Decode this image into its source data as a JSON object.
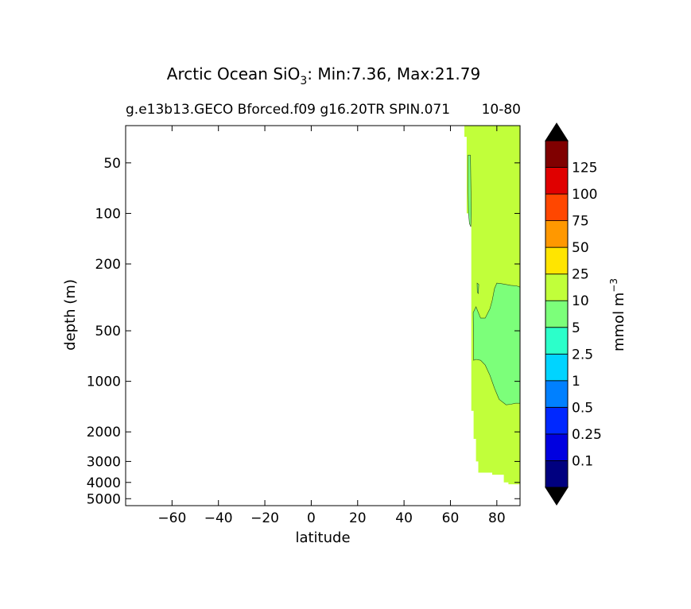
{
  "chart_data": {
    "type": "heatmap",
    "title": "Arctic Ocean SiO3: Min:7.36, Max:21.79",
    "title_parts": {
      "prefix": "Arctic Ocean SiO",
      "subscript": "3",
      "suffix": ": Min:7.36, Max:21.79"
    },
    "subtitle_left": "g.e13b13.GECO Bforced.f09 g16.20TR SPIN.071",
    "subtitle_right": "10-80",
    "xlabel": "latitude",
    "ylabel": "depth (m)",
    "x_range": [
      -80,
      90
    ],
    "x_ticks": [
      -60,
      -40,
      -20,
      0,
      20,
      40,
      60,
      80
    ],
    "x_tick_labels": [
      "−60",
      "−40",
      "−20",
      "0",
      "20",
      "40",
      "60",
      "80"
    ],
    "y_scale": "log",
    "y_inverted": true,
    "y_range": [
      5500,
      30
    ],
    "y_ticks": [
      50,
      100,
      200,
      500,
      1000,
      2000,
      3000,
      4000,
      5000
    ],
    "y_tick_labels": [
      "50",
      "100",
      "200",
      "500",
      "1000",
      "2000",
      "3000",
      "4000",
      "5000"
    ],
    "colorbar": {
      "label": "mmol m",
      "label_exponent": "−3",
      "extend": "both",
      "levels": [
        0,
        0.1,
        0.25,
        0.5,
        1,
        2.5,
        5,
        10,
        25,
        50,
        75,
        100,
        125,
        150
      ],
      "tick_labels": [
        "0.1",
        "0.25",
        "0.5",
        "1",
        "2.5",
        "5",
        "10",
        "25",
        "50",
        "75",
        "100",
        "125"
      ],
      "colors": [
        "#000080",
        "#0000e0",
        "#0028ff",
        "#0080ff",
        "#00d4ff",
        "#2cffca",
        "#7cff7a",
        "#c1ff3a",
        "#ffe500",
        "#ff9800",
        "#ff4700",
        "#e00000",
        "#800000"
      ],
      "under_color": "#000000",
      "over_color": "#000000"
    },
    "field": {
      "ocean_outline": [
        [
          66,
          30
        ],
        [
          90,
          30
        ],
        [
          90,
          4100
        ],
        [
          85,
          4100
        ],
        [
          85,
          4000
        ],
        [
          83,
          4000
        ],
        [
          83,
          3600
        ],
        [
          78,
          3600
        ],
        [
          78,
          3500
        ],
        [
          72,
          3500
        ],
        [
          72,
          3000
        ],
        [
          71,
          3000
        ],
        [
          71,
          2200
        ],
        [
          70,
          2200
        ],
        [
          70,
          1500
        ],
        [
          69,
          1500
        ],
        [
          69,
          100
        ],
        [
          67,
          100
        ],
        [
          67,
          35
        ],
        [
          66,
          35
        ]
      ],
      "regions": [
        {
          "class": "5-10",
          "polygon": [
            [
              69.8,
              390
            ],
            [
              71,
              360
            ],
            [
              73,
              420
            ],
            [
              75,
              420
            ],
            [
              77,
              370
            ],
            [
              78,
              330
            ],
            [
              79,
              280
            ],
            [
              80,
              260
            ],
            [
              82,
              262
            ],
            [
              86,
              268
            ],
            [
              88.5,
              270
            ],
            [
              90,
              275
            ],
            [
              90,
              1350
            ],
            [
              88,
              1350
            ],
            [
              86,
              1370
            ],
            [
              84,
              1380
            ],
            [
              81,
              1280
            ],
            [
              79,
              1100
            ],
            [
              77,
              920
            ],
            [
              75,
              800
            ],
            [
              73,
              750
            ],
            [
              71,
              740
            ],
            [
              70,
              750
            ],
            [
              70,
              600
            ]
          ]
        },
        {
          "class": "5-10",
          "polygon": [
            [
              67.6,
              45
            ],
            [
              68.6,
              45
            ],
            [
              69,
              100
            ],
            [
              68.8,
              120
            ],
            [
              68.2,
              115
            ],
            [
              67.8,
              100
            ],
            [
              67.6,
              70
            ]
          ]
        },
        {
          "class": "5-10",
          "polygon": [
            [
              71.5,
              260
            ],
            [
              72.2,
              265
            ],
            [
              72,
              300
            ],
            [
              71.6,
              295
            ]
          ]
        }
      ]
    }
  }
}
